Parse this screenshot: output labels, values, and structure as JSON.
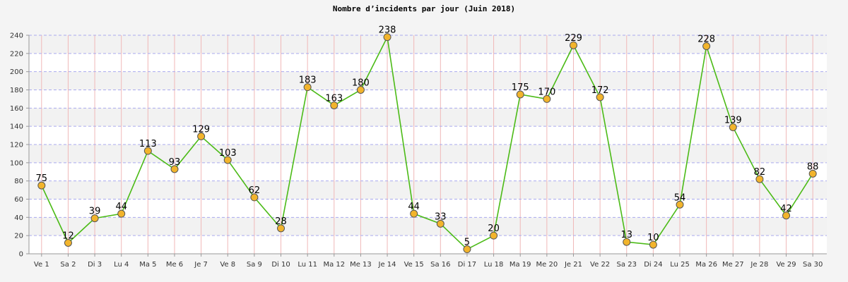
{
  "chart_data": {
    "type": "line",
    "title": "Nombre d’incidents par jour (Juin 2018)",
    "xlabel": "",
    "ylabel": "",
    "ylim": [
      0,
      240
    ],
    "yticks": [
      0,
      20,
      40,
      60,
      80,
      100,
      120,
      140,
      160,
      180,
      200,
      220,
      240
    ],
    "grid": true,
    "categories": [
      "Ve 1",
      "Sa 2",
      "Di 3",
      "Lu 4",
      "Ma 5",
      "Me 6",
      "Je 7",
      "Ve 8",
      "Sa 9",
      "Di 10",
      "Lu 11",
      "Ma 12",
      "Me 13",
      "Je 14",
      "Ve 15",
      "Sa 16",
      "Di 17",
      "Lu 18",
      "Ma 19",
      "Me 20",
      "Je 21",
      "Ve 22",
      "Sa 23",
      "Di 24",
      "Lu 25",
      "Ma 26",
      "Me 27",
      "Je 28",
      "Ve 29",
      "Sa 30"
    ],
    "values": [
      75,
      12,
      39,
      44,
      113,
      93,
      129,
      103,
      62,
      28,
      183,
      163,
      180,
      238,
      44,
      33,
      5,
      20,
      175,
      170,
      229,
      172,
      13,
      10,
      54,
      228,
      139,
      82,
      42,
      88
    ],
    "colors": {
      "line": "#4cbb17",
      "marker_fill": "#f2b42c",
      "marker_stroke": "#555555",
      "vgrid": "#f0b8b8",
      "hgrid": "#aaaaee",
      "band_light": "#ffffff",
      "band_dark": "#f2f2f2",
      "axis": "#999999"
    }
  }
}
